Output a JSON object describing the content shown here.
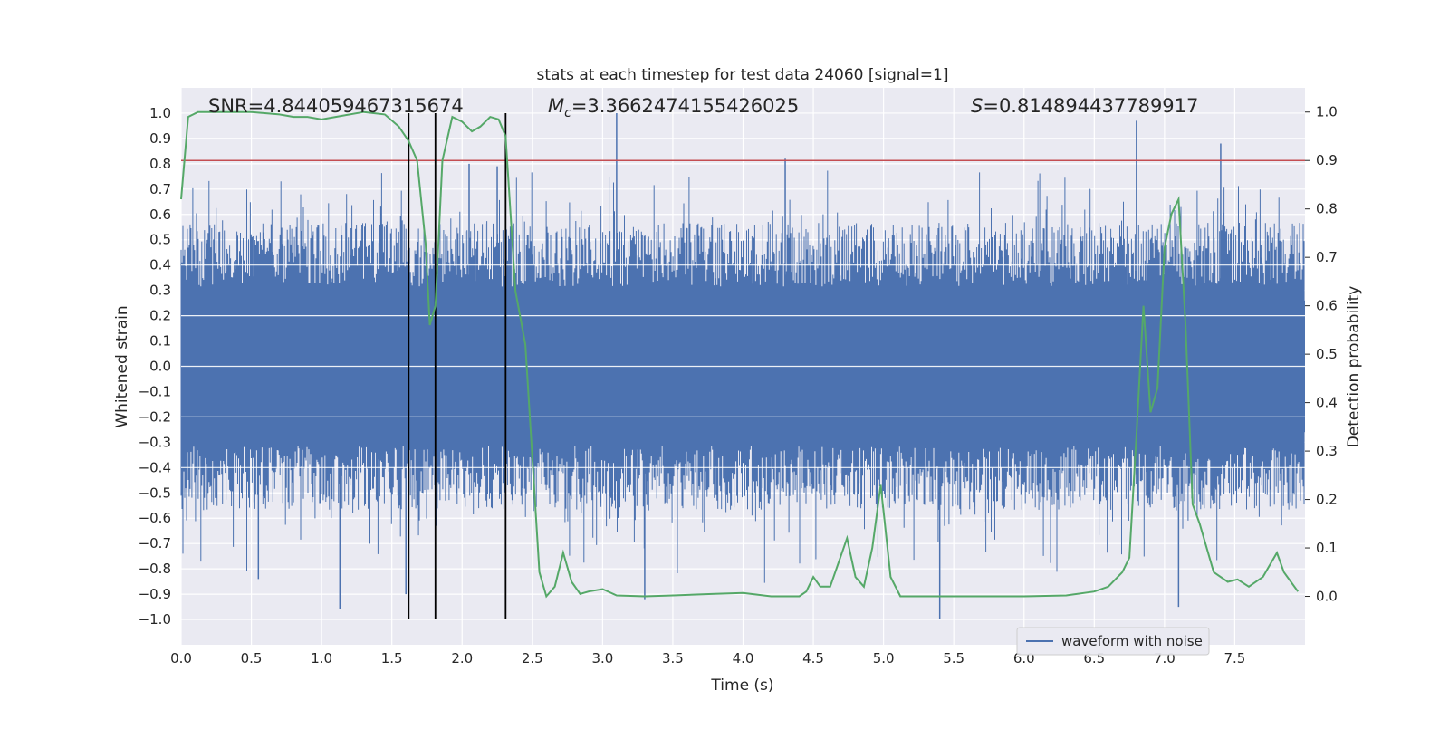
{
  "chart_data": {
    "type": "line",
    "title": "stats at each timestep for test data 24060 [signal=1]",
    "xlabel": "Time (s)",
    "ylabel_left": "Whitened strain",
    "ylabel_right": "Detection probability",
    "xlim": [
      0,
      8
    ],
    "ylim_left": [
      -1.1,
      1.1
    ],
    "ylim_right": [
      -0.1,
      1.05
    ],
    "x_ticks": [
      "0.0",
      "0.5",
      "1.0",
      "1.5",
      "2.0",
      "2.5",
      "3.0",
      "3.5",
      "4.0",
      "4.5",
      "5.0",
      "5.5",
      "6.0",
      "6.5",
      "7.0",
      "7.5"
    ],
    "x_tick_values": [
      0,
      0.5,
      1,
      1.5,
      2,
      2.5,
      3,
      3.5,
      4,
      4.5,
      5,
      5.5,
      6,
      6.5,
      7,
      7.5
    ],
    "y_ticks_left": [
      "1.0",
      "0.9",
      "0.8",
      "0.7",
      "0.6",
      "0.5",
      "0.4",
      "0.3",
      "0.2",
      "0.1",
      "0.0",
      "−0.1",
      "−0.2",
      "−0.3",
      "−0.4",
      "−0.5",
      "−0.6",
      "−0.7",
      "−0.8",
      "−0.9",
      "−1.0"
    ],
    "y_tick_values_left": [
      1,
      0.9,
      0.8,
      0.7,
      0.6,
      0.5,
      0.4,
      0.3,
      0.2,
      0.1,
      0,
      -0.1,
      -0.2,
      -0.3,
      -0.4,
      -0.5,
      -0.6,
      -0.7,
      -0.8,
      -0.9,
      -1.0
    ],
    "y_ticks_right": [
      "1.0",
      "0.9",
      "0.8",
      "0.7",
      "0.6",
      "0.5",
      "0.4",
      "0.3",
      "0.2",
      "0.1",
      "0.0"
    ],
    "y_tick_values_right": [
      1,
      0.9,
      0.8,
      0.7,
      0.6,
      0.5,
      0.4,
      0.3,
      0.2,
      0.1,
      0
    ],
    "annotations": {
      "snr": "SNR=4.844059467315674",
      "mc_symbol": "M",
      "mc_sub": "c",
      "mc_value": "=3.3662474155426025",
      "s_symbol": "S",
      "s_value": "=0.814894437789917"
    },
    "threshold": {
      "value": 0.9,
      "axis": "right",
      "color": "#c44e52"
    },
    "vertical_lines": [
      1.62,
      1.81,
      2.31
    ],
    "legend": {
      "label": "waveform with noise",
      "position": "lower-right"
    },
    "waveform": {
      "name": "waveform with noise",
      "color": "#4c72b0",
      "envelope": 0.42,
      "spikes": [
        {
          "t": 0.55,
          "v": -0.84
        },
        {
          "t": 1.13,
          "v": -0.96
        },
        {
          "t": 1.6,
          "v": -0.9
        },
        {
          "t": 3.1,
          "v": 1.0
        },
        {
          "t": 3.3,
          "v": -0.92
        },
        {
          "t": 4.3,
          "v": 0.82
        },
        {
          "t": 5.4,
          "v": -1.0
        },
        {
          "t": 6.8,
          "v": 0.97
        },
        {
          "t": 7.4,
          "v": 0.88
        },
        {
          "t": 7.1,
          "v": -0.95
        },
        {
          "t": 2.05,
          "v": 0.8
        },
        {
          "t": 2.25,
          "v": 0.79
        }
      ]
    },
    "probability": {
      "name": "Detection probability",
      "color": "#55a868",
      "x": [
        0,
        0.05,
        0.12,
        0.3,
        0.5,
        0.7,
        0.8,
        0.9,
        1.0,
        1.1,
        1.3,
        1.45,
        1.55,
        1.62,
        1.68,
        1.74,
        1.77,
        1.81,
        1.86,
        1.93,
        2.0,
        2.07,
        2.13,
        2.2,
        2.26,
        2.31,
        2.38,
        2.45,
        2.55,
        2.6,
        2.66,
        2.72,
        2.78,
        2.84,
        2.9,
        3.0,
        3.1,
        3.3,
        3.5,
        3.8,
        4.0,
        4.2,
        4.4,
        4.45,
        4.5,
        4.55,
        4.62,
        4.68,
        4.74,
        4.8,
        4.86,
        4.92,
        4.98,
        5.05,
        5.12,
        5.3,
        5.6,
        6.0,
        6.3,
        6.5,
        6.6,
        6.7,
        6.75,
        6.8,
        6.85,
        6.9,
        6.95,
        7.0,
        7.05,
        7.1,
        7.15,
        7.2,
        7.25,
        7.35,
        7.45,
        7.52,
        7.6,
        7.7,
        7.8,
        7.85,
        7.95
      ],
      "y": [
        0.82,
        0.99,
        1.0,
        1.0,
        1.0,
        0.995,
        0.99,
        0.99,
        0.985,
        0.99,
        1.0,
        0.995,
        0.97,
        0.94,
        0.9,
        0.73,
        0.56,
        0.6,
        0.9,
        0.99,
        0.98,
        0.96,
        0.97,
        0.99,
        0.985,
        0.95,
        0.63,
        0.52,
        0.05,
        0.0,
        0.02,
        0.09,
        0.03,
        0.005,
        0.01,
        0.015,
        0.002,
        0.0,
        0.002,
        0.005,
        0.007,
        0.0,
        0.0,
        0.01,
        0.04,
        0.02,
        0.02,
        0.07,
        0.12,
        0.04,
        0.02,
        0.1,
        0.23,
        0.04,
        0.0,
        0.0,
        0.0,
        0.0,
        0.002,
        0.01,
        0.02,
        0.05,
        0.08,
        0.33,
        0.6,
        0.38,
        0.43,
        0.72,
        0.79,
        0.82,
        0.56,
        0.19,
        0.15,
        0.05,
        0.03,
        0.035,
        0.02,
        0.04,
        0.09,
        0.05,
        0.01
      ]
    }
  }
}
